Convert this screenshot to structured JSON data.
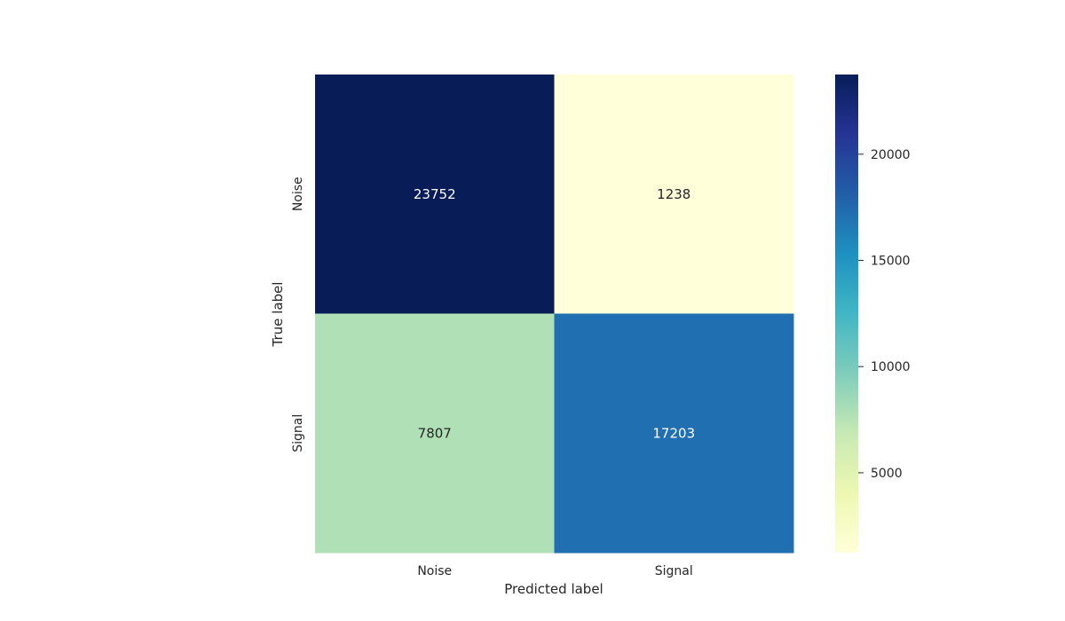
{
  "chart_data": {
    "type": "heatmap",
    "title": "",
    "xlabel": "Predicted label",
    "ylabel": "True label",
    "x_categories": [
      "Noise",
      "Signal"
    ],
    "y_categories": [
      "Noise",
      "Signal"
    ],
    "values": [
      [
        23752,
        1238
      ],
      [
        7807,
        17203
      ]
    ],
    "colormap": "YlGnBu",
    "colorbar": {
      "range": [
        1238,
        23752
      ],
      "ticks": [
        5000,
        10000,
        15000,
        20000
      ]
    },
    "grid": false,
    "legend": "colorbar-right"
  },
  "colors": {
    "annotation_light": "#ffffff",
    "annotation_dark": "#262626",
    "axis_text": "#262626",
    "background": "#ffffff"
  }
}
